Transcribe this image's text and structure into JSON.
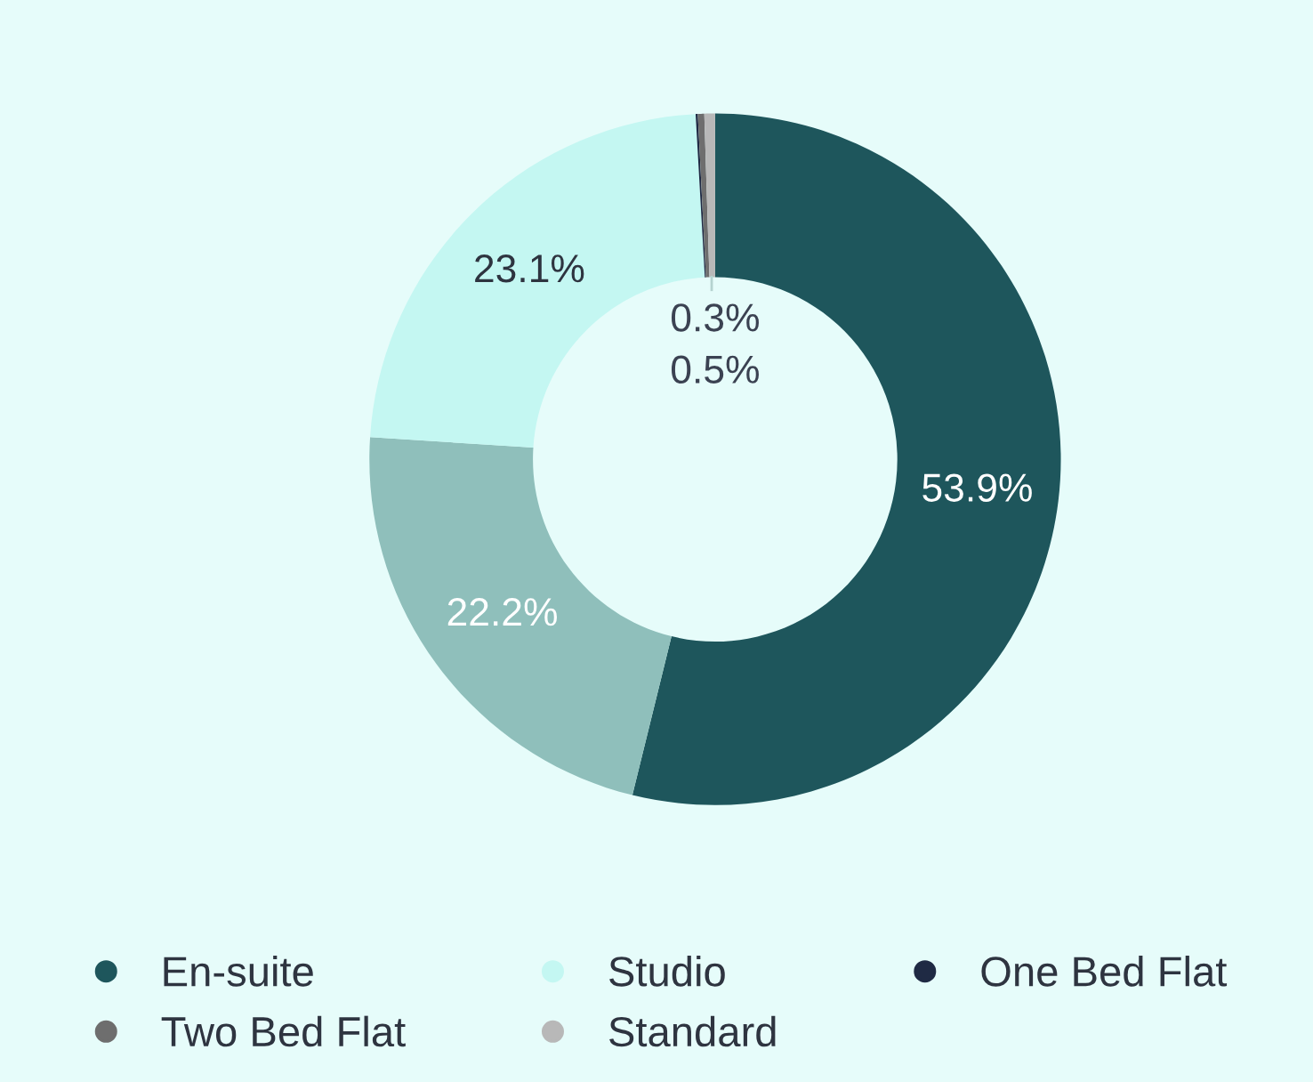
{
  "chart_data": {
    "type": "donut",
    "categories": [
      "En-suite",
      null,
      "Studio",
      "One Bed Flat",
      "Two Bed Flat",
      "Standard"
    ],
    "values": [
      53.9,
      22.2,
      23.1,
      0.1,
      0.3,
      0.5
    ],
    "value_labels": [
      "53.9%",
      "22.2%",
      "23.1%",
      null,
      "0.3%",
      "0.5%"
    ],
    "colors": [
      "#1e565c",
      "#8fbfbb",
      "#c4f7f2",
      "#1f2a44",
      "#6e6e6e",
      "#b8b8b8"
    ],
    "legend": "bottom"
  }
}
